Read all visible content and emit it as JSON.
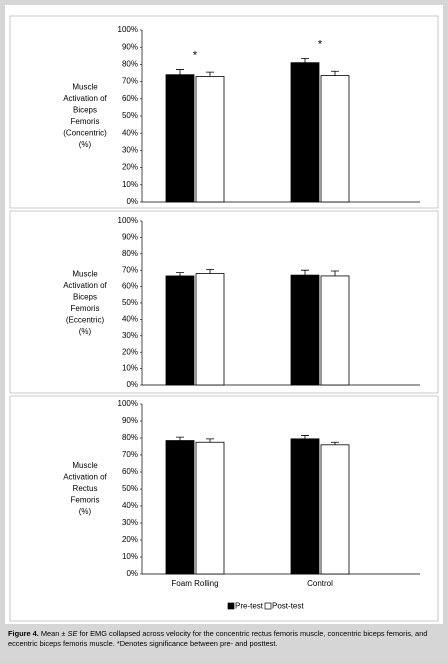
{
  "chart_data": [
    {
      "type": "bar",
      "ylabel": [
        "Muscle",
        "Activation of",
        "Biceps",
        "Femoris",
        "(Concentric)",
        "(%)"
      ],
      "series": [
        {
          "color": "#000000",
          "values": [
            74,
            81
          ],
          "errors": [
            3,
            2.5
          ]
        },
        {
          "color": "#ffffff",
          "values": [
            73,
            73.5
          ],
          "errors": [
            2.5,
            2.5
          ]
        }
      ],
      "annotations": [
        "*",
        "*"
      ],
      "ylim": [
        0,
        100
      ],
      "yticks": [
        {
          "value": 0,
          "label": "0%"
        },
        {
          "value": 10,
          "label": "10%"
        },
        {
          "value": 20,
          "label": "20%"
        },
        {
          "value": 30,
          "label": "30%"
        },
        {
          "value": 40,
          "label": "40%"
        },
        {
          "value": 50,
          "label": "50%"
        },
        {
          "value": 60,
          "label": "60%"
        },
        {
          "value": 70,
          "label": "70%"
        },
        {
          "value": 80,
          "label": "80%"
        },
        {
          "value": 90,
          "label": "90%"
        },
        {
          "value": 100,
          "label": "100%"
        }
      ]
    },
    {
      "type": "bar",
      "ylabel": [
        "Muscle",
        "Activation of",
        "Biceps",
        "Femoris",
        "(Eccentric)",
        "(%)"
      ],
      "series": [
        {
          "color": "#000000",
          "values": [
            66.5,
            67
          ],
          "errors": [
            2,
            3
          ]
        },
        {
          "color": "#ffffff",
          "values": [
            68,
            66.5
          ],
          "errors": [
            2.5,
            3
          ]
        }
      ],
      "ylim": [
        0,
        100
      ],
      "yticks": [
        {
          "value": 0,
          "label": "0%"
        },
        {
          "value": 10,
          "label": "10%"
        },
        {
          "value": 20,
          "label": "20%"
        },
        {
          "value": 30,
          "label": "30%"
        },
        {
          "value": 40,
          "label": "40%"
        },
        {
          "value": 50,
          "label": "50%"
        },
        {
          "value": 60,
          "label": "60%"
        },
        {
          "value": 70,
          "label": "70%"
        },
        {
          "value": 80,
          "label": "80%"
        },
        {
          "value": 90,
          "label": "90%"
        },
        {
          "value": 100,
          "label": "100%"
        }
      ]
    },
    {
      "type": "bar",
      "ylabel": [
        "Muscle",
        "Activation of",
        "Rectus",
        "Femoris",
        "(%)"
      ],
      "categories": [
        "Foam Rolling",
        "Control"
      ],
      "series": [
        {
          "name": "Pre-test",
          "color": "#000000",
          "values": [
            78.5,
            79.5
          ],
          "errors": [
            2,
            2
          ]
        },
        {
          "name": "Post-test",
          "color": "#ffffff",
          "values": [
            77.5,
            76
          ],
          "errors": [
            2,
            1.5
          ]
        }
      ],
      "ylim": [
        0,
        100
      ],
      "yticks": [
        {
          "value": 0,
          "label": "0%"
        },
        {
          "value": 10,
          "label": "10%"
        },
        {
          "value": 20,
          "label": "20%"
        },
        {
          "value": 30,
          "label": "30%"
        },
        {
          "value": 40,
          "label": "40%"
        },
        {
          "value": 50,
          "label": "50%"
        },
        {
          "value": 60,
          "label": "60%"
        },
        {
          "value": 70,
          "label": "70%"
        },
        {
          "value": 80,
          "label": "80%"
        },
        {
          "value": 90,
          "label": "90%"
        },
        {
          "value": 100,
          "label": "100%"
        }
      ]
    }
  ],
  "caption": [
    "Figure 4.",
    " Mean ± ",
    "SE",
    " for EMG collapsed across velocity for the concentric rectus femoris muscle, concentric biceps femoris, and eccentric biceps femoris muscle. *Denotes significance between pre- and posttest."
  ]
}
